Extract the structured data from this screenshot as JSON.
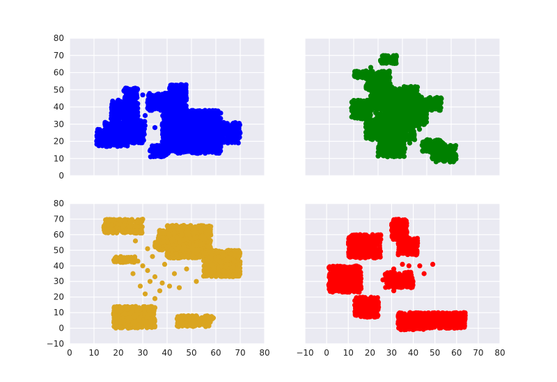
{
  "chart_data": [
    {
      "type": "scatter",
      "color": "#0000ff",
      "xlim": [
        0,
        80
      ],
      "ylim": [
        0,
        80
      ],
      "xticks": [
        0,
        10,
        20,
        30,
        40,
        50,
        60,
        70,
        80
      ],
      "yticks": [
        0,
        10,
        20,
        30,
        40,
        50,
        60,
        70,
        80
      ],
      "show_x_tick_labels": false,
      "show_y_tick_labels": true,
      "grid": true,
      "clusters": [
        {
          "x": [
            11,
            24
          ],
          "y": [
            17,
            27
          ]
        },
        {
          "x": [
            14,
            31
          ],
          "y": [
            19,
            32
          ]
        },
        {
          "x": [
            17,
            28
          ],
          "y": [
            33,
            44
          ]
        },
        {
          "x": [
            22,
            28
          ],
          "y": [
            45,
            51
          ]
        },
        {
          "x": [
            32,
            48
          ],
          "y": [
            38,
            48
          ]
        },
        {
          "x": [
            41,
            48
          ],
          "y": [
            44,
            53
          ]
        },
        {
          "x": [
            38,
            62
          ],
          "y": [
            13,
            38
          ]
        },
        {
          "x": [
            33,
            40
          ],
          "y": [
            11,
            18
          ]
        },
        {
          "x": [
            55,
            70
          ],
          "y": [
            19,
            31
          ]
        },
        {
          "x": [
            44,
            60
          ],
          "y": [
            24,
            37
          ]
        }
      ],
      "points": [
        {
          "x": 27,
          "y": 33
        },
        {
          "x": 31,
          "y": 35
        },
        {
          "x": 25,
          "y": 38
        },
        {
          "x": 35,
          "y": 28
        },
        {
          "x": 29,
          "y": 24
        },
        {
          "x": 33,
          "y": 41
        },
        {
          "x": 37,
          "y": 46
        },
        {
          "x": 30,
          "y": 47
        },
        {
          "x": 26,
          "y": 46
        }
      ]
    },
    {
      "type": "scatter",
      "color": "#008000",
      "xlim": [
        0,
        80
      ],
      "ylim": [
        0,
        80
      ],
      "xticks": [
        0,
        10,
        20,
        30,
        40,
        50,
        60,
        70,
        80
      ],
      "yticks": [
        0,
        10,
        20,
        30,
        40,
        50,
        60,
        70,
        80
      ],
      "show_x_tick_labels": false,
      "show_y_tick_labels": false,
      "grid": true,
      "clusters": [
        {
          "x": [
            31,
            38
          ],
          "y": [
            65,
            70
          ]
        },
        {
          "x": [
            20,
            35
          ],
          "y": [
            57,
            61
          ]
        },
        {
          "x": [
            25,
            35
          ],
          "y": [
            50,
            57
          ]
        },
        {
          "x": [
            19,
            27
          ],
          "y": [
            33,
            44
          ]
        },
        {
          "x": [
            27,
            47
          ],
          "y": [
            38,
            52
          ]
        },
        {
          "x": [
            36,
            50
          ],
          "y": [
            29,
            44
          ]
        },
        {
          "x": [
            29,
            45
          ],
          "y": [
            21,
            37
          ]
        },
        {
          "x": [
            30,
            41
          ],
          "y": [
            11,
            26
          ]
        },
        {
          "x": [
            44,
            56
          ],
          "y": [
            38,
            46
          ]
        },
        {
          "x": [
            52,
            62
          ],
          "y": [
            8,
            19
          ]
        },
        {
          "x": [
            48,
            57
          ],
          "y": [
            14,
            21
          ]
        },
        {
          "x": [
            25,
            33
          ],
          "y": [
            21,
            33
          ]
        }
      ],
      "points": [
        {
          "x": 43,
          "y": 19
        },
        {
          "x": 45,
          "y": 21
        },
        {
          "x": 41,
          "y": 16
        },
        {
          "x": 47,
          "y": 27
        },
        {
          "x": 44,
          "y": 33
        },
        {
          "x": 27,
          "y": 63
        }
      ]
    },
    {
      "type": "scatter",
      "color": "#daa520",
      "xlim": [
        0,
        80
      ],
      "ylim": [
        -10,
        80
      ],
      "xticks": [
        0,
        10,
        20,
        30,
        40,
        50,
        60,
        70,
        80
      ],
      "yticks": [
        -10,
        0,
        10,
        20,
        30,
        40,
        50,
        60,
        70,
        80
      ],
      "show_x_tick_labels": true,
      "show_y_tick_labels": true,
      "grid": true,
      "clusters": [
        {
          "x": [
            14,
            30
          ],
          "y": [
            61,
            70
          ]
        },
        {
          "x": [
            18,
            27
          ],
          "y": [
            42,
            46
          ]
        },
        {
          "x": [
            35,
            38
          ],
          "y": [
            50,
            56
          ]
        },
        {
          "x": [
            40,
            58
          ],
          "y": [
            45,
            66
          ]
        },
        {
          "x": [
            55,
            70
          ],
          "y": [
            33,
            50
          ]
        },
        {
          "x": [
            18,
            35
          ],
          "y": [
            0,
            14
          ]
        },
        {
          "x": [
            44,
            59
          ],
          "y": [
            5,
            8
          ]
        },
        {
          "x": [
            44,
            58
          ],
          "y": [
            1,
            4
          ]
        },
        {
          "x": [
            36,
            48
          ],
          "y": [
            50,
            63
          ]
        }
      ],
      "points": [
        {
          "x": 33,
          "y": 30
        },
        {
          "x": 26,
          "y": 35
        },
        {
          "x": 30,
          "y": 40
        },
        {
          "x": 29,
          "y": 27
        },
        {
          "x": 35,
          "y": 33
        },
        {
          "x": 28,
          "y": 43
        },
        {
          "x": 32,
          "y": 37
        },
        {
          "x": 37,
          "y": 24
        },
        {
          "x": 35,
          "y": 19
        },
        {
          "x": 38,
          "y": 29
        },
        {
          "x": 41,
          "y": 27
        },
        {
          "x": 31,
          "y": 22
        },
        {
          "x": 39,
          "y": 41
        },
        {
          "x": 34,
          "y": 46
        },
        {
          "x": 43,
          "y": 35
        },
        {
          "x": 48,
          "y": 38
        },
        {
          "x": 52,
          "y": 30
        },
        {
          "x": 45,
          "y": 26
        },
        {
          "x": 40,
          "y": 56
        },
        {
          "x": 32,
          "y": 51
        },
        {
          "x": 27,
          "y": 56
        }
      ]
    },
    {
      "type": "scatter",
      "color": "#ff0000",
      "xlim": [
        -10,
        80
      ],
      "ylim": [
        -10,
        80
      ],
      "xticks": [
        -10,
        0,
        10,
        20,
        30,
        40,
        50,
        60,
        70,
        80
      ],
      "yticks": [
        -10,
        0,
        10,
        20,
        30,
        40,
        50,
        60,
        70,
        80
      ],
      "show_x_tick_labels": true,
      "show_y_tick_labels": false,
      "grid": true,
      "clusters": [
        {
          "x": [
            10,
            25
          ],
          "y": [
            45,
            60
          ]
        },
        {
          "x": [
            30,
            37
          ],
          "y": [
            57,
            70
          ]
        },
        {
          "x": [
            33,
            42
          ],
          "y": [
            47,
            58
          ]
        },
        {
          "x": [
            1,
            16
          ],
          "y": [
            23,
            40
          ]
        },
        {
          "x": [
            13,
            24
          ],
          "y": [
            7,
            20
          ]
        },
        {
          "x": [
            27,
            40
          ],
          "y": [
            26,
            36
          ]
        },
        {
          "x": [
            33,
            64
          ],
          "y": [
            0,
            10
          ]
        },
        {
          "x": [
            33,
            45
          ],
          "y": [
            -1,
            3
          ]
        }
      ],
      "points": [
        {
          "x": 31,
          "y": 38
        },
        {
          "x": 38,
          "y": 40
        },
        {
          "x": 43,
          "y": 40
        },
        {
          "x": 49,
          "y": 41
        },
        {
          "x": 45,
          "y": 35
        },
        {
          "x": 26,
          "y": 31
        },
        {
          "x": 31,
          "y": 24
        },
        {
          "x": 39,
          "y": 26
        },
        {
          "x": 35,
          "y": 41
        }
      ]
    }
  ]
}
